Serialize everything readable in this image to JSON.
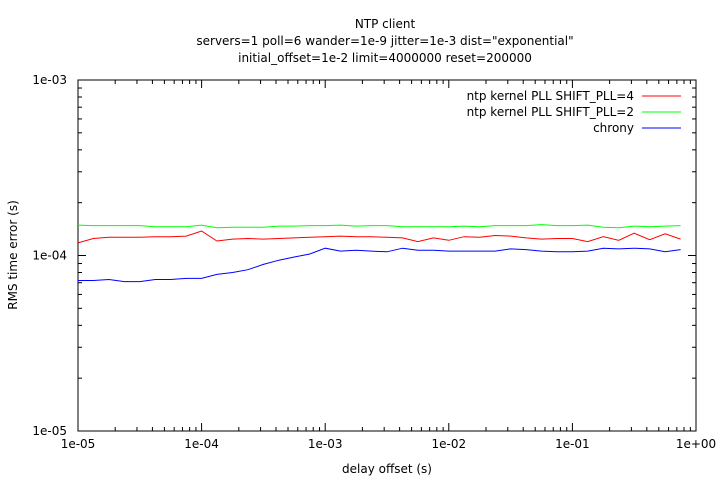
{
  "chart_data": {
    "type": "line",
    "title": "NTP client",
    "subtitle_lines": [
      "servers=1 poll=6 wander=1e-9 jitter=1e-3 dist=\"exponential\"",
      "initial_offset=1e-2 limit=4000000 reset=200000"
    ],
    "xlabel": "delay offset (s)",
    "ylabel": "RMS time error (s)",
    "x_scale": "log",
    "y_scale": "log",
    "xlim": [
      1e-05,
      1
    ],
    "ylim": [
      1e-05,
      0.001
    ],
    "x_tick_labels": [
      "1e-05",
      "1e-04",
      "1e-03",
      "1e-02",
      "1e-01",
      "1e+00"
    ],
    "y_tick_labels": [
      "1e-05",
      "1e-04",
      "1e-03"
    ],
    "grid": false,
    "legend_position": "top-right",
    "x": [
      1e-05,
      1.33e-05,
      1.78e-05,
      2.37e-05,
      3.16e-05,
      4.22e-05,
      5.62e-05,
      7.5e-05,
      0.0001,
      0.000133,
      0.000178,
      0.000237,
      0.000316,
      0.000422,
      0.000562,
      0.00075,
      0.001,
      0.00133,
      0.00178,
      0.00237,
      0.00316,
      0.00422,
      0.00562,
      0.0075,
      0.01,
      0.0133,
      0.0178,
      0.0237,
      0.0316,
      0.0422,
      0.0562,
      0.075,
      0.1,
      0.133,
      0.178,
      0.237,
      0.316,
      0.422,
      0.562,
      0.75
    ],
    "series": [
      {
        "name": "ntp kernel PLL SHIFT_PLL=4",
        "color": "#ff0000",
        "values": [
          0.000118,
          0.000125,
          0.000127,
          0.000127,
          0.000127,
          0.000128,
          0.000128,
          0.000129,
          0.000138,
          0.000121,
          0.000124,
          0.000125,
          0.000124,
          0.000125,
          0.000126,
          0.000127,
          0.000128,
          0.000129,
          0.000128,
          0.000128,
          0.000127,
          0.000126,
          0.00012,
          0.000126,
          0.000122,
          0.000128,
          0.000127,
          0.00013,
          0.000129,
          0.000126,
          0.000124,
          0.000125,
          0.000125,
          0.00012,
          0.000128,
          0.000122,
          0.000134,
          0.000123,
          0.000133,
          0.000124
        ]
      },
      {
        "name": "ntp kernel PLL SHIFT_PLL=2",
        "color": "#00ff00",
        "values": [
          0.000149,
          0.000148,
          0.000148,
          0.000148,
          0.000148,
          0.000146,
          0.000146,
          0.000146,
          0.000149,
          0.000144,
          0.000145,
          0.000145,
          0.000145,
          0.000147,
          0.000147,
          0.000148,
          0.000148,
          0.000149,
          0.000147,
          0.000148,
          0.000148,
          0.000146,
          0.000146,
          0.000146,
          0.000146,
          0.000147,
          0.000146,
          0.000148,
          0.000148,
          0.000148,
          0.00015,
          0.000148,
          0.000148,
          0.000149,
          0.000145,
          0.000144,
          0.000147,
          0.000146,
          0.000147,
          0.000148
        ]
      },
      {
        "name": "chrony",
        "color": "#0000ff",
        "values": [
          7.2e-05,
          7.2e-05,
          7.3e-05,
          7.1e-05,
          7.1e-05,
          7.3e-05,
          7.3e-05,
          7.4e-05,
          7.4e-05,
          7.8e-05,
          8e-05,
          8.3e-05,
          8.9e-05,
          9.4e-05,
          9.8e-05,
          0.000102,
          0.00011,
          0.000106,
          0.000107,
          0.000106,
          0.000105,
          0.00011,
          0.000107,
          0.000107,
          0.000106,
          0.000106,
          0.000106,
          0.000106,
          0.000109,
          0.000108,
          0.000106,
          0.000105,
          0.000105,
          0.000106,
          0.00011,
          0.000109,
          0.00011,
          0.000109,
          0.000105,
          0.000108
        ]
      }
    ]
  }
}
